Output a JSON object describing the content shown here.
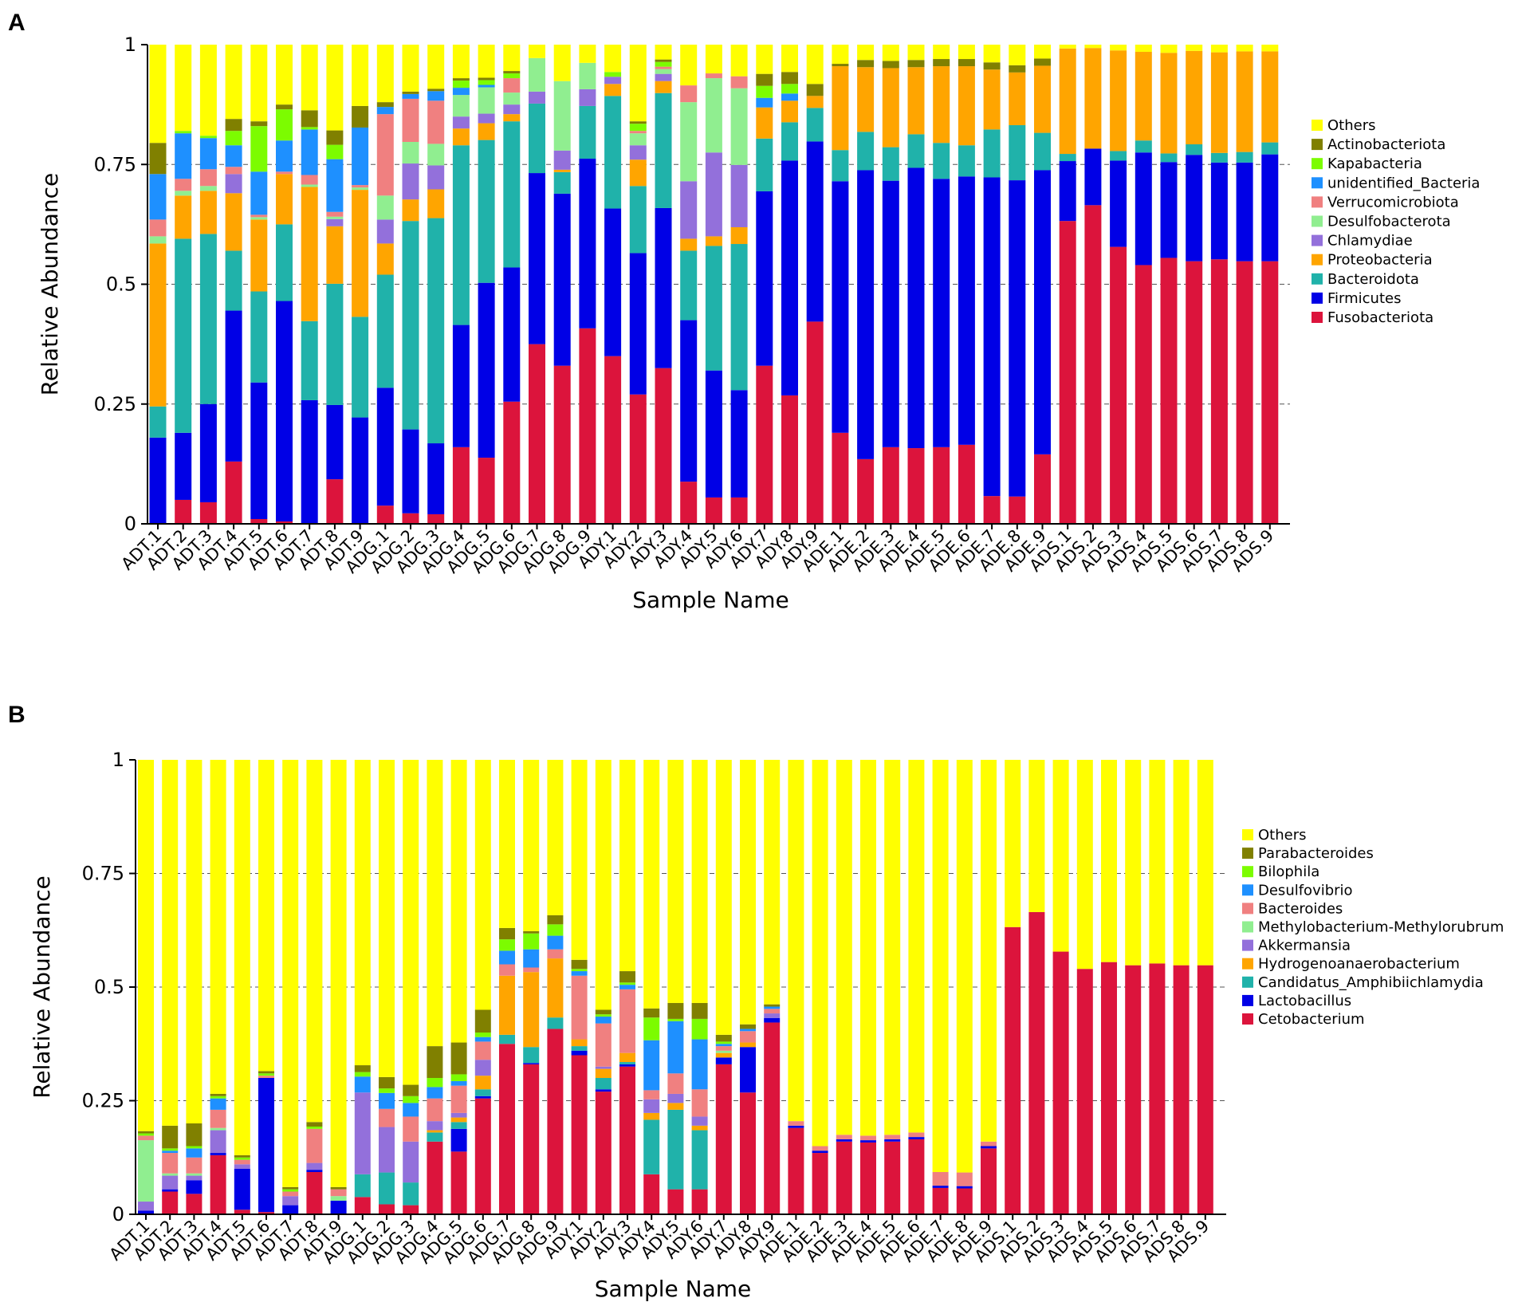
{
  "samples": [
    "ADT.1",
    "ADT.2",
    "ADT.3",
    "ADT.4",
    "ADT.5",
    "ADT.6",
    "ADT.7",
    "ADT.8",
    "ADT.9",
    "ADG.1",
    "ADG.2",
    "ADG.3",
    "ADG.4",
    "ADG.5",
    "ADG.6",
    "ADG.7",
    "ADG.8",
    "ADG.9",
    "ADY.1",
    "ADY.2",
    "ADY.3",
    "ADY.4",
    "ADY.5",
    "ADY.6",
    "ADY.7",
    "ADY.8",
    "ADY.9",
    "ADE.1",
    "ADE.2",
    "ADE.3",
    "ADE.4",
    "ADE.5",
    "ADE.6",
    "ADE.7",
    "ADE.8",
    "ADE.9",
    "ADS.1",
    "ADS.2",
    "ADS.3",
    "ADS.4",
    "ADS.5",
    "ADS.6",
    "ADS.7",
    "ADS.8",
    "ADS.9"
  ],
  "chart_data": [
    {
      "panel": "A",
      "type": "bar",
      "stacked": true,
      "xlabel": "Sample Name",
      "ylabel": "Relative Abundance",
      "ylim": [
        0,
        1
      ],
      "yticks": [
        "0",
        "0.25",
        "0.5",
        "0.75",
        "1"
      ],
      "grid": "dashed horizontal",
      "legend_position": "right",
      "series": [
        {
          "name": "Fusobacteriota",
          "color": "#dc143c",
          "values": [
            0,
            0.05,
            0.045,
            0.13,
            0.01,
            0.005,
            0,
            0.093,
            0,
            0.038,
            0.022,
            0.02,
            0.16,
            0.138,
            0.255,
            0.375,
            0.33,
            0.408,
            0.35,
            0.27,
            0.325,
            0.088,
            0.055,
            0.055,
            0.33,
            0.268,
            0.422,
            0.19,
            0.135,
            0.16,
            0.158,
            0.16,
            0.165,
            0.058,
            0.057,
            0.145,
            0.632,
            0.665,
            0.578,
            0.54,
            0.555,
            0.548,
            0.552,
            0.548,
            0.548
          ]
        },
        {
          "name": "Firmicutes",
          "color": "#0000e6",
          "values": [
            0.18,
            0.14,
            0.205,
            0.315,
            0.285,
            0.46,
            0.258,
            0.155,
            0.222,
            0.246,
            0.175,
            0.148,
            0.255,
            0.365,
            0.28,
            0.357,
            0.359,
            0.354,
            0.308,
            0.295,
            0.334,
            0.337,
            0.265,
            0.224,
            0.364,
            0.49,
            0.376,
            0.525,
            0.603,
            0.556,
            0.585,
            0.56,
            0.56,
            0.665,
            0.66,
            0.593,
            0.125,
            0.118,
            0.18,
            0.235,
            0.2,
            0.222,
            0.202,
            0.206,
            0.223
          ]
        },
        {
          "name": "Bacteroidota",
          "color": "#20b2aa",
          "values": [
            0.065,
            0.405,
            0.355,
            0.125,
            0.19,
            0.16,
            0.165,
            0.253,
            0.21,
            0.236,
            0.435,
            0.47,
            0.375,
            0.298,
            0.305,
            0.145,
            0.045,
            0.11,
            0.235,
            0.14,
            0.24,
            0.145,
            0.26,
            0.305,
            0.11,
            0.08,
            0.07,
            0.065,
            0.08,
            0.07,
            0.07,
            0.075,
            0.065,
            0.1,
            0.115,
            0.078,
            0.015,
            0,
            0.02,
            0.025,
            0.018,
            0.022,
            0.02,
            0.022,
            0.025
          ]
        },
        {
          "name": "Proteobacteria",
          "color": "#ffa500",
          "values": [
            0.34,
            0.09,
            0.09,
            0.12,
            0.15,
            0.105,
            0.28,
            0.12,
            0.265,
            0.065,
            0.045,
            0.06,
            0.035,
            0.035,
            0.015,
            0,
            0.005,
            0,
            0.025,
            0.055,
            0.025,
            0.025,
            0.02,
            0.035,
            0.065,
            0.045,
            0.025,
            0.175,
            0.135,
            0.165,
            0.14,
            0.16,
            0.165,
            0.125,
            0.11,
            0.14,
            0.22,
            0.21,
            0.21,
            0.185,
            0.21,
            0.195,
            0.21,
            0.21,
            0.19
          ]
        },
        {
          "name": "Chlamydiae",
          "color": "#9370db",
          "values": [
            0,
            0,
            0,
            0.04,
            0,
            0,
            0,
            0.015,
            0,
            0.05,
            0.075,
            0.05,
            0.025,
            0.02,
            0.02,
            0.025,
            0.04,
            0.035,
            0.015,
            0.03,
            0.015,
            0.12,
            0.175,
            0.13,
            0,
            0,
            0,
            0,
            0,
            0,
            0,
            0,
            0,
            0,
            0,
            0,
            0,
            0,
            0,
            0,
            0,
            0,
            0,
            0,
            0
          ]
        },
        {
          "name": "Desulfobacterota",
          "color": "#90ee90",
          "values": [
            0.015,
            0.01,
            0.01,
            0,
            0.005,
            0,
            0.005,
            0.005,
            0.005,
            0.05,
            0.045,
            0.045,
            0.045,
            0.055,
            0.025,
            0.07,
            0.145,
            0.055,
            0,
            0.025,
            0.01,
            0.165,
            0.155,
            0.16,
            0,
            0,
            0,
            0,
            0,
            0,
            0,
            0,
            0,
            0,
            0,
            0,
            0,
            0,
            0,
            0,
            0,
            0,
            0,
            0,
            0
          ]
        },
        {
          "name": "Verrucomicrobiota",
          "color": "#f08080",
          "values": [
            0.035,
            0.025,
            0.035,
            0.015,
            0.005,
            0.005,
            0.02,
            0.01,
            0.005,
            0.17,
            0.09,
            0.09,
            0,
            0,
            0.03,
            0,
            0,
            0,
            0,
            0.005,
            0.005,
            0.035,
            0.01,
            0.025,
            0,
            0,
            0,
            0,
            0,
            0,
            0,
            0,
            0,
            0,
            0,
            0,
            0,
            0,
            0,
            0,
            0,
            0,
            0,
            0,
            0
          ]
        },
        {
          "name": "unidentified_Bacteria",
          "color": "#1e90ff",
          "values": [
            0.095,
            0.095,
            0.065,
            0.045,
            0.09,
            0.065,
            0.095,
            0.11,
            0.12,
            0.015,
            0.01,
            0.02,
            0.015,
            0.005,
            0,
            0,
            0,
            0,
            0,
            0,
            0,
            0,
            0,
            0,
            0.02,
            0.015,
            0,
            0,
            0,
            0,
            0,
            0,
            0,
            0,
            0,
            0,
            0,
            0,
            0,
            0,
            0,
            0,
            0,
            0,
            0
          ]
        },
        {
          "name": "Kapabacteria",
          "color": "#7cfc00",
          "values": [
            0,
            0.005,
            0.005,
            0.03,
            0.095,
            0.065,
            0.005,
            0.03,
            0,
            0,
            0,
            0,
            0.015,
            0.01,
            0.01,
            0,
            0,
            0,
            0.01,
            0.015,
            0.01,
            0,
            0,
            0,
            0.025,
            0.02,
            0,
            0,
            0,
            0,
            0,
            0,
            0,
            0,
            0,
            0,
            0,
            0,
            0,
            0,
            0,
            0,
            0,
            0,
            0
          ]
        },
        {
          "name": "Actinobacteriota",
          "color": "#808000",
          "values": [
            0.065,
            0,
            0,
            0.025,
            0.01,
            0.01,
            0.035,
            0.03,
            0.045,
            0.01,
            0.005,
            0.005,
            0.005,
            0.005,
            0.005,
            0,
            0,
            0,
            0,
            0.005,
            0.005,
            0,
            0,
            0,
            0.025,
            0.025,
            0.025,
            0.005,
            0.015,
            0.015,
            0.015,
            0.015,
            0.015,
            0.015,
            0.015,
            0.015,
            0,
            0,
            0,
            0,
            0,
            0,
            0,
            0,
            0
          ]
        }
      ],
      "others": {
        "name": "Others",
        "color": "#ffff00"
      }
    },
    {
      "panel": "B",
      "type": "bar",
      "stacked": true,
      "xlabel": "Sample Name",
      "ylabel": "Relative Abundance",
      "ylim": [
        0,
        1
      ],
      "yticks": [
        "0",
        "0.25",
        "0.5",
        "0.75",
        "1"
      ],
      "grid": "dashed horizontal",
      "legend_position": "right",
      "series": [
        {
          "name": "Cetobacterium",
          "color": "#dc143c",
          "values": [
            0,
            0.05,
            0.045,
            0.13,
            0.01,
            0.005,
            0,
            0.093,
            0,
            0.038,
            0.022,
            0.02,
            0.16,
            0.138,
            0.255,
            0.375,
            0.33,
            0.408,
            0.35,
            0.27,
            0.325,
            0.088,
            0.055,
            0.055,
            0.33,
            0.268,
            0.422,
            0.19,
            0.135,
            0.16,
            0.158,
            0.16,
            0.165,
            0.058,
            0.057,
            0.145,
            0.632,
            0.665,
            0.578,
            0.54,
            0.555,
            0.548,
            0.552,
            0.548,
            0.548
          ]
        },
        {
          "name": "Lactobacillus",
          "color": "#0000e6",
          "values": [
            0.008,
            0.005,
            0.03,
            0.005,
            0.09,
            0.295,
            0.02,
            0.005,
            0.03,
            0,
            0,
            0,
            0,
            0.05,
            0.005,
            0,
            0.003,
            0,
            0.01,
            0.005,
            0.005,
            0,
            0,
            0,
            0.015,
            0.1,
            0.01,
            0.005,
            0.005,
            0.005,
            0.005,
            0.005,
            0.005,
            0.005,
            0.005,
            0.005,
            0,
            0,
            0,
            0,
            0,
            0,
            0,
            0,
            0
          ]
        },
        {
          "name": "Candidatus_Amphibiichlamydia",
          "color": "#20b2aa",
          "values": [
            0,
            0,
            0,
            0,
            0,
            0,
            0,
            0,
            0,
            0.05,
            0.07,
            0.05,
            0.02,
            0.015,
            0.015,
            0.02,
            0.035,
            0.025,
            0.01,
            0.025,
            0.005,
            0.12,
            0.175,
            0.13,
            0,
            0,
            0,
            0,
            0,
            0,
            0,
            0,
            0,
            0,
            0,
            0,
            0,
            0,
            0,
            0,
            0,
            0,
            0,
            0,
            0
          ]
        },
        {
          "name": "Hydrogenoanaerobacterium",
          "color": "#ffa500",
          "values": [
            0,
            0,
            0,
            0,
            0,
            0,
            0,
            0,
            0,
            0,
            0,
            0,
            0.005,
            0.01,
            0.03,
            0.13,
            0.165,
            0.13,
            0.015,
            0.02,
            0.02,
            0.015,
            0.015,
            0.01,
            0.01,
            0.01,
            0,
            0,
            0,
            0,
            0,
            0,
            0,
            0,
            0,
            0,
            0,
            0,
            0,
            0,
            0,
            0,
            0,
            0,
            0
          ]
        },
        {
          "name": "Akkermansia",
          "color": "#9370db",
          "values": [
            0.02,
            0.03,
            0.01,
            0.05,
            0.01,
            0,
            0.02,
            0.015,
            0,
            0.18,
            0.1,
            0.09,
            0.02,
            0.01,
            0.035,
            0,
            0,
            0,
            0,
            0.005,
            0,
            0.03,
            0.02,
            0.02,
            0,
            0,
            0.01,
            0,
            0,
            0,
            0,
            0,
            0,
            0,
            0,
            0,
            0,
            0,
            0,
            0,
            0,
            0,
            0,
            0,
            0
          ]
        },
        {
          "name": "Methylobacterium-Methylorubrum",
          "color": "#90ee90",
          "values": [
            0.135,
            0.005,
            0.005,
            0.005,
            0,
            0,
            0,
            0,
            0.01,
            0,
            0,
            0,
            0,
            0,
            0,
            0,
            0,
            0,
            0,
            0,
            0,
            0,
            0,
            0,
            0.005,
            0,
            0,
            0,
            0,
            0,
            0,
            0,
            0,
            0,
            0,
            0,
            0,
            0,
            0,
            0,
            0,
            0,
            0,
            0,
            0
          ]
        },
        {
          "name": "Bacteroides",
          "color": "#f08080",
          "values": [
            0.01,
            0.045,
            0.035,
            0.04,
            0.01,
            0.005,
            0.01,
            0.075,
            0.015,
            0,
            0.04,
            0.055,
            0.05,
            0.06,
            0.04,
            0.025,
            0.01,
            0.02,
            0.14,
            0.095,
            0.14,
            0.02,
            0.045,
            0.06,
            0.01,
            0.025,
            0.01,
            0.01,
            0.01,
            0.01,
            0.01,
            0.01,
            0.01,
            0.03,
            0.03,
            0.01,
            0,
            0,
            0,
            0,
            0,
            0,
            0,
            0,
            0
          ]
        },
        {
          "name": "Desulfovibrio",
          "color": "#1e90ff",
          "values": [
            0,
            0.005,
            0.02,
            0.025,
            0,
            0,
            0,
            0,
            0,
            0.035,
            0.035,
            0.03,
            0.025,
            0.01,
            0.01,
            0.03,
            0.04,
            0.03,
            0.01,
            0.015,
            0.01,
            0.11,
            0.115,
            0.11,
            0.005,
            0.005,
            0.005,
            0,
            0,
            0,
            0,
            0,
            0,
            0,
            0,
            0,
            0,
            0,
            0,
            0,
            0,
            0,
            0,
            0,
            0
          ]
        },
        {
          "name": "Bilophila",
          "color": "#7cfc00",
          "values": [
            0.005,
            0.005,
            0.005,
            0.005,
            0.005,
            0.005,
            0.005,
            0.005,
            0,
            0.01,
            0.01,
            0.015,
            0.02,
            0.015,
            0.01,
            0.025,
            0.035,
            0.025,
            0.005,
            0.005,
            0.005,
            0.05,
            0.005,
            0.045,
            0.005,
            0,
            0,
            0,
            0,
            0,
            0,
            0,
            0,
            0,
            0,
            0,
            0,
            0,
            0,
            0,
            0,
            0,
            0,
            0,
            0
          ]
        },
        {
          "name": "Parabacteroides",
          "color": "#808000",
          "values": [
            0.005,
            0.05,
            0.05,
            0.005,
            0.005,
            0.005,
            0.005,
            0.01,
            0.005,
            0.015,
            0.025,
            0.025,
            0.07,
            0.07,
            0.05,
            0.025,
            0.005,
            0.02,
            0.02,
            0.01,
            0.025,
            0.02,
            0.035,
            0.035,
            0.015,
            0.01,
            0.005,
            0,
            0,
            0,
            0,
            0,
            0,
            0,
            0,
            0,
            0,
            0,
            0,
            0,
            0,
            0,
            0,
            0,
            0
          ]
        }
      ],
      "others": {
        "name": "Others",
        "color": "#ffff00"
      }
    }
  ]
}
